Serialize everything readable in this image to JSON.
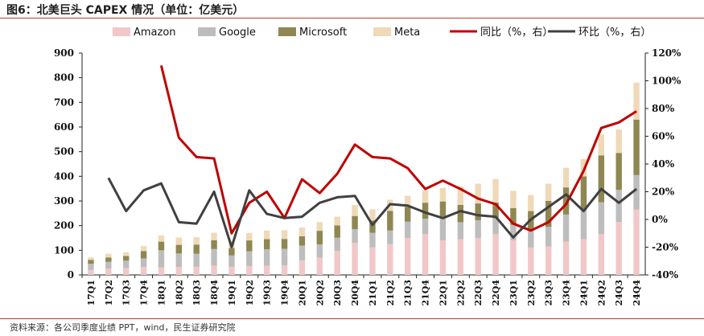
{
  "header": {
    "title": "图6：北美巨头 CAPEX 情况（单位：亿美元）",
    "source": "资料来源：各公司季度业绩 PPT，wind，民生证券研究院"
  },
  "colors": {
    "amazon": "#f2c7c8",
    "google": "#bdbdbd",
    "microsoft": "#8f8752",
    "meta": "#efd9b8",
    "yoy": "#c00000",
    "qoq": "#404040",
    "accent_rule": "#c23a2b"
  },
  "chart_data": {
    "type": "bar",
    "stacked": true,
    "legend_position": "top",
    "categories": [
      "17Q1",
      "17Q2",
      "17Q3",
      "17Q4",
      "18Q1",
      "18Q2",
      "18Q3",
      "18Q4",
      "19Q1",
      "19Q2",
      "19Q3",
      "19Q4",
      "20Q1",
      "20Q2",
      "20Q3",
      "20Q4",
      "21Q1",
      "21Q2",
      "21Q3",
      "21Q4",
      "22Q1",
      "22Q2",
      "22Q3",
      "22Q4",
      "23Q1",
      "23Q2",
      "23Q3",
      "23Q4",
      "24Q1",
      "24Q2",
      "24Q3",
      "24Q4"
    ],
    "ylim": [
      0,
      900
    ],
    "yticks": [
      0,
      100,
      200,
      300,
      400,
      500,
      600,
      700,
      800,
      900
    ],
    "y2lim": [
      -40,
      120
    ],
    "y2ticks": [
      "-40%",
      "-20%",
      "0%",
      "20%",
      "40%",
      "60%",
      "80%",
      "100%",
      "120%"
    ],
    "series": [
      {
        "name": "Amazon",
        "kind": "bar",
        "values": [
          20,
          25,
          28,
          32,
          30,
          32,
          33,
          37,
          33,
          35,
          37,
          38,
          59,
          70,
          97,
          130,
          112,
          125,
          150,
          165,
          140,
          145,
          150,
          165,
          140,
          110,
          115,
          135,
          145,
          165,
          215,
          265
        ]
      },
      {
        "name": "Google",
        "kind": "bar",
        "values": [
          25,
          28,
          30,
          35,
          70,
          55,
          53,
          68,
          46,
          61,
          67,
          68,
          60,
          54,
          54,
          56,
          59,
          55,
          66,
          63,
          98,
          69,
          72,
          64,
          63,
          69,
          80,
          110,
          120,
          130,
          130,
          140
        ]
      },
      {
        "name": "Microsoft",
        "kind": "bar",
        "values": [
          16,
          18,
          19,
          30,
          35,
          35,
          37,
          36,
          30,
          44,
          41,
          40,
          38,
          55,
          50,
          53,
          50,
          80,
          60,
          65,
          60,
          70,
          68,
          65,
          68,
          80,
          105,
          110,
          135,
          190,
          150,
          225
        ]
      },
      {
        "name": "Meta",
        "kind": "bar",
        "values": [
          10,
          15,
          15,
          20,
          25,
          30,
          30,
          30,
          30,
          30,
          35,
          35,
          35,
          35,
          35,
          45,
          45,
          45,
          45,
          50,
          55,
          75,
          80,
          95,
          70,
          65,
          70,
          80,
          70,
          85,
          95,
          150
        ]
      },
      {
        "name": "同比（%，右）",
        "kind": "line",
        "axis": "right",
        "values": [
          null,
          null,
          null,
          null,
          111,
          59,
          45,
          44,
          -10,
          12,
          20,
          1,
          29,
          19,
          33,
          54,
          45,
          44,
          37,
          22,
          28,
          22,
          15,
          11,
          -3,
          -8,
          -2,
          11,
          35,
          66,
          70,
          78
        ]
      },
      {
        "name": "环比（%，右）",
        "kind": "line",
        "axis": "right",
        "values": [
          null,
          30,
          6,
          21,
          26,
          -2,
          -3,
          20,
          -20,
          21,
          4,
          1,
          2,
          12,
          16,
          17,
          -4,
          11,
          10,
          5,
          1,
          6,
          3,
          2,
          -13,
          0,
          9,
          18,
          6,
          22,
          12,
          22
        ]
      }
    ]
  }
}
